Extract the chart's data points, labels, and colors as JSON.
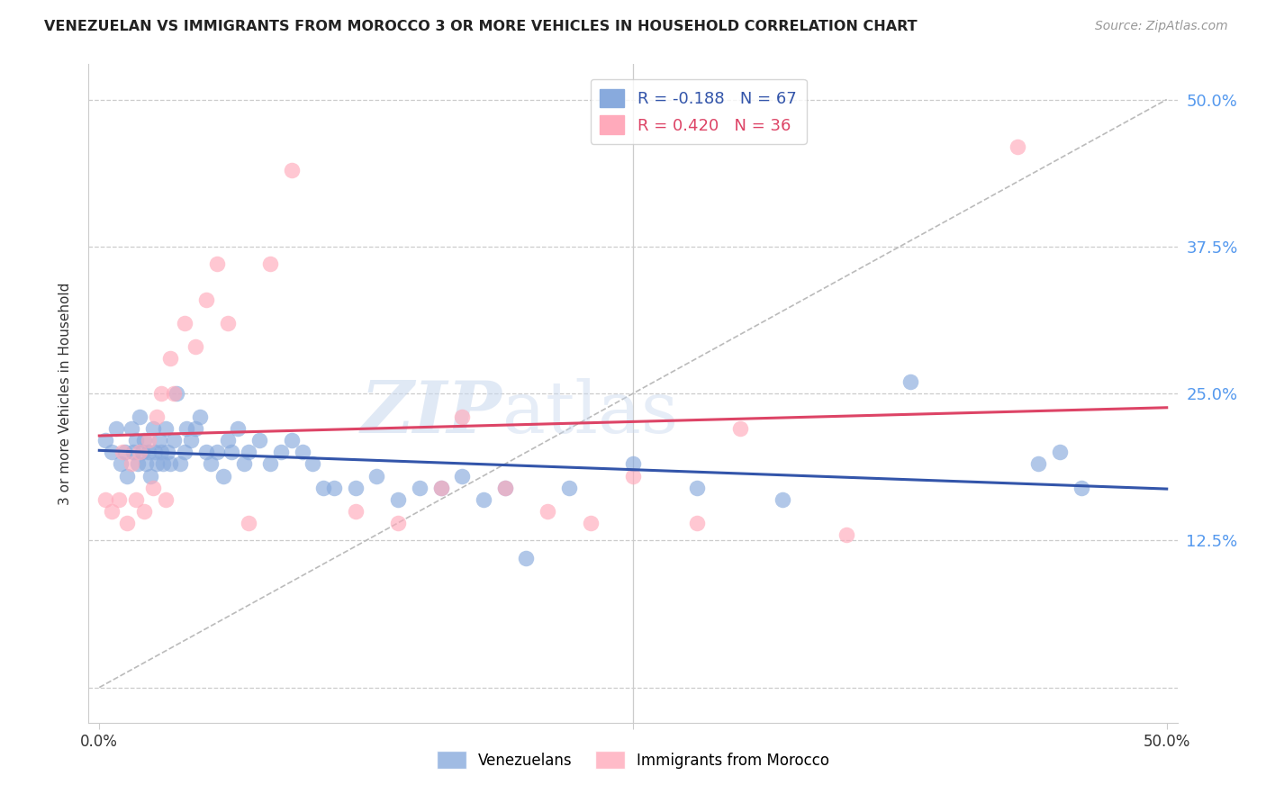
{
  "title": "VENEZUELAN VS IMMIGRANTS FROM MOROCCO 3 OR MORE VEHICLES IN HOUSEHOLD CORRELATION CHART",
  "source": "Source: ZipAtlas.com",
  "ylabel": "3 or more Vehicles in Household",
  "yaxis_ticks": [
    0.0,
    0.125,
    0.25,
    0.375,
    0.5
  ],
  "yaxis_labels": [
    "",
    "12.5%",
    "25.0%",
    "37.5%",
    "50.0%"
  ],
  "xlim": [
    -0.005,
    0.505
  ],
  "ylim": [
    -0.03,
    0.53
  ],
  "watermark_zip": "ZIP",
  "watermark_atlas": "atlas",
  "legend_blue_r": "R = -0.188",
  "legend_blue_n": "N = 67",
  "legend_pink_r": "R = 0.420",
  "legend_pink_n": "N = 36",
  "blue_scatter_color": "#88AADD",
  "pink_scatter_color": "#FFAABB",
  "blue_line_color": "#3355AA",
  "pink_line_color": "#DD4466",
  "legend_box_color": "#DDDDDD",
  "grid_color": "#CCCCCC",
  "right_tick_color": "#5599EE",
  "venezuelan_scatter_x": [
    0.003,
    0.006,
    0.008,
    0.01,
    0.012,
    0.013,
    0.015,
    0.016,
    0.017,
    0.018,
    0.019,
    0.02,
    0.021,
    0.022,
    0.023,
    0.024,
    0.025,
    0.026,
    0.027,
    0.028,
    0.029,
    0.03,
    0.031,
    0.032,
    0.033,
    0.035,
    0.036,
    0.038,
    0.04,
    0.041,
    0.043,
    0.045,
    0.047,
    0.05,
    0.052,
    0.055,
    0.058,
    0.06,
    0.062,
    0.065,
    0.068,
    0.07,
    0.075,
    0.08,
    0.085,
    0.09,
    0.095,
    0.1,
    0.105,
    0.11,
    0.12,
    0.13,
    0.14,
    0.15,
    0.16,
    0.17,
    0.18,
    0.19,
    0.2,
    0.22,
    0.25,
    0.28,
    0.32,
    0.38,
    0.44,
    0.45,
    0.46
  ],
  "venezuelan_scatter_y": [
    0.21,
    0.2,
    0.22,
    0.19,
    0.2,
    0.18,
    0.22,
    0.2,
    0.21,
    0.19,
    0.23,
    0.2,
    0.21,
    0.19,
    0.2,
    0.18,
    0.22,
    0.2,
    0.19,
    0.21,
    0.2,
    0.19,
    0.22,
    0.2,
    0.19,
    0.21,
    0.25,
    0.19,
    0.2,
    0.22,
    0.21,
    0.22,
    0.23,
    0.2,
    0.19,
    0.2,
    0.18,
    0.21,
    0.2,
    0.22,
    0.19,
    0.2,
    0.21,
    0.19,
    0.2,
    0.21,
    0.2,
    0.19,
    0.17,
    0.17,
    0.17,
    0.18,
    0.16,
    0.17,
    0.17,
    0.18,
    0.16,
    0.17,
    0.11,
    0.17,
    0.19,
    0.17,
    0.16,
    0.26,
    0.19,
    0.2,
    0.17
  ],
  "morocco_scatter_x": [
    0.003,
    0.006,
    0.009,
    0.011,
    0.013,
    0.015,
    0.017,
    0.019,
    0.021,
    0.023,
    0.025,
    0.027,
    0.029,
    0.031,
    0.033,
    0.035,
    0.04,
    0.045,
    0.05,
    0.055,
    0.06,
    0.07,
    0.08,
    0.09,
    0.12,
    0.14,
    0.16,
    0.17,
    0.19,
    0.21,
    0.23,
    0.25,
    0.28,
    0.3,
    0.35,
    0.43
  ],
  "morocco_scatter_y": [
    0.16,
    0.15,
    0.16,
    0.2,
    0.14,
    0.19,
    0.16,
    0.2,
    0.15,
    0.21,
    0.17,
    0.23,
    0.25,
    0.16,
    0.28,
    0.25,
    0.31,
    0.29,
    0.33,
    0.36,
    0.31,
    0.14,
    0.36,
    0.44,
    0.15,
    0.14,
    0.17,
    0.23,
    0.17,
    0.15,
    0.14,
    0.18,
    0.14,
    0.22,
    0.13,
    0.46
  ]
}
